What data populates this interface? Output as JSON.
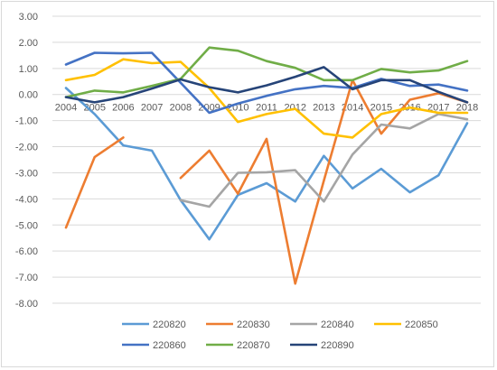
{
  "chart_data": {
    "type": "line",
    "title": "",
    "xlabel": "",
    "ylabel": "",
    "x": [
      "2004",
      "2005",
      "2006",
      "2007",
      "2008",
      "2009",
      "2010",
      "2011",
      "2012",
      "2013",
      "2014",
      "2015",
      "2016",
      "2017",
      "2018"
    ],
    "ylim": [
      -8,
      3
    ],
    "yticks": [
      "3.00",
      "2.00",
      "1.00",
      "0.00",
      "-1.00",
      "-2.00",
      "-3.00",
      "-4.00",
      "-5.00",
      "-6.00",
      "-7.00",
      "-8.00"
    ],
    "grid": true,
    "legend_position": "bottom",
    "series": [
      {
        "name": "220820",
        "color": "#5B9BD5",
        "values": [
          0.25,
          -0.75,
          -1.95,
          -2.15,
          -4.05,
          -5.55,
          -3.85,
          -3.4,
          -4.1,
          -2.35,
          -3.6,
          -2.85,
          -3.75,
          -3.1,
          -1.1
        ]
      },
      {
        "name": "220830",
        "color": "#ED7D31",
        "values": [
          -5.1,
          -2.4,
          -1.65,
          null,
          -3.2,
          -2.15,
          -3.8,
          -1.7,
          -7.25,
          -3.3,
          0.55,
          -1.5,
          -0.2,
          0.05,
          -0.3
        ]
      },
      {
        "name": "220840",
        "color": "#A5A5A5",
        "values": [
          null,
          null,
          null,
          null,
          -4.05,
          -4.3,
          -3.0,
          -2.98,
          -2.9,
          -4.1,
          -2.3,
          -1.15,
          -1.3,
          -0.75,
          -0.95
        ]
      },
      {
        "name": "220850",
        "color": "#FFC000",
        "values": [
          0.55,
          0.75,
          1.35,
          1.2,
          1.25,
          0.25,
          -1.05,
          -0.75,
          -0.55,
          -1.5,
          -1.65,
          -0.75,
          -0.5,
          -0.7,
          -0.7
        ]
      },
      {
        "name": "220860",
        "color": "#4472C4",
        "values": [
          1.15,
          1.6,
          1.58,
          1.6,
          0.45,
          -0.7,
          -0.35,
          -0.05,
          0.2,
          0.33,
          0.25,
          0.6,
          0.33,
          0.38,
          0.15
        ]
      },
      {
        "name": "220870",
        "color": "#70AD47",
        "values": [
          -0.1,
          0.15,
          0.08,
          0.33,
          0.6,
          1.8,
          1.68,
          1.28,
          1.02,
          0.55,
          0.55,
          0.98,
          0.85,
          0.92,
          1.28
        ]
      },
      {
        "name": "220890",
        "color": "#264478",
        "values": [
          -0.1,
          -0.3,
          -0.1,
          0.23,
          0.58,
          0.28,
          0.08,
          0.35,
          0.68,
          1.05,
          0.2,
          0.55,
          0.55,
          0.1,
          -0.3
        ]
      }
    ]
  }
}
